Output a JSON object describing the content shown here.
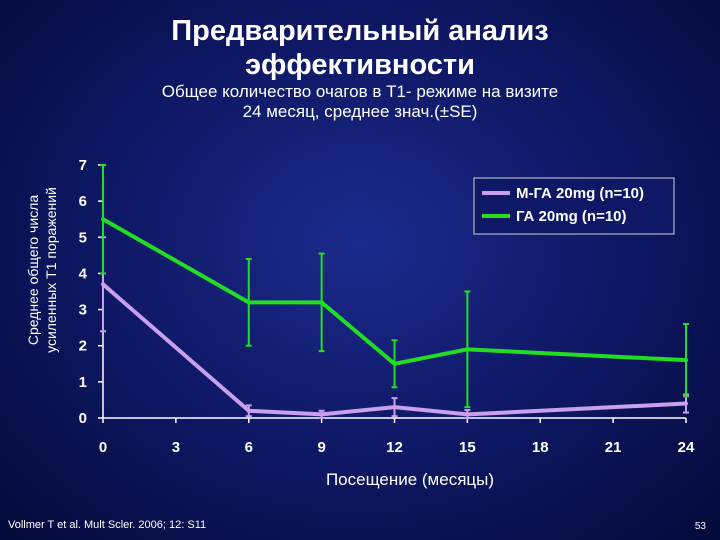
{
  "slide": {
    "title_line1": "Предварительный анализ",
    "title_line2": "эффективности",
    "subtitle_line1": "Общее количество очагов в Т1- режиме на визите",
    "subtitle_line2": "24 месяц, среднее знач.(±SE)",
    "source": "Vollmer T et al. Mult Scler. 2006; 12: S11",
    "page_number": "53"
  },
  "chart_data": {
    "type": "line",
    "xlabel": "Посещение (месяцы)",
    "ylabel_line1": "Среднее общего числа",
    "ylabel_line2": "усиленных Т1 поражений",
    "x_ticks": [
      0,
      3,
      6,
      9,
      12,
      15,
      18,
      21,
      24
    ],
    "y_ticks": [
      0,
      1,
      2,
      3,
      4,
      5,
      6,
      7
    ],
    "xlim": [
      0,
      24
    ],
    "ylim": [
      0,
      7
    ],
    "grid": false,
    "legend_position": "top-right",
    "series": [
      {
        "name": "М-ГА 20mg (n=10)",
        "color": "#c9a0ee",
        "x": [
          0,
          6,
          9,
          12,
          15,
          24
        ],
        "y": [
          3.7,
          0.2,
          0.1,
          0.3,
          0.1,
          0.4
        ],
        "err": [
          1.3,
          0.15,
          0.1,
          0.25,
          0.12,
          0.25
        ]
      },
      {
        "name": "ГА 20mg (n=10)",
        "color": "#22dd22",
        "x": [
          0,
          6,
          9,
          12,
          15,
          24
        ],
        "y": [
          5.5,
          3.2,
          3.2,
          1.5,
          1.9,
          1.6
        ],
        "err": [
          1.5,
          1.2,
          1.35,
          0.65,
          1.6,
          1.0
        ]
      }
    ]
  }
}
